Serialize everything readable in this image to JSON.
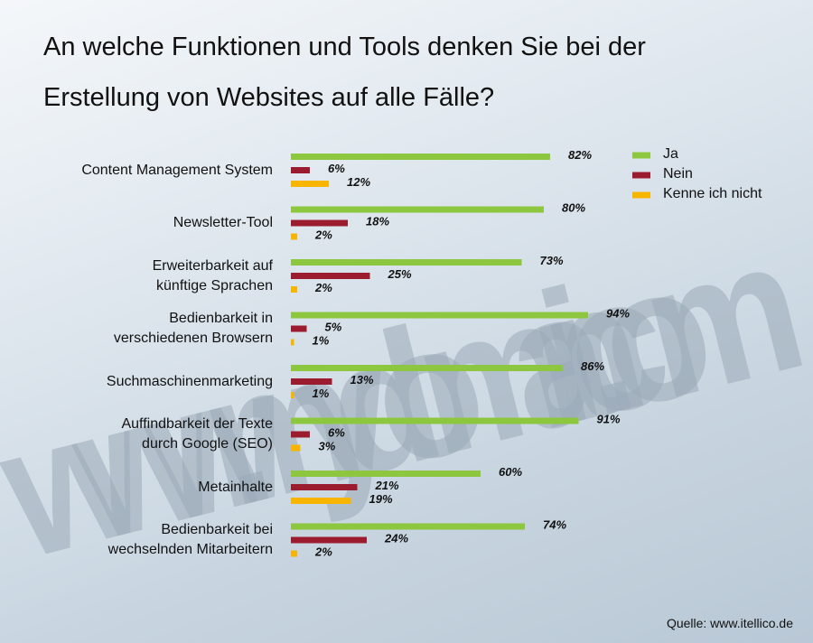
{
  "chart_data": {
    "type": "bar",
    "orientation": "horizontal",
    "title": "An welche Funktionen und Tools denken Sie bei der Erstellung von Websites auf alle Fälle?",
    "categories": [
      "Content Management System",
      "Newsletter-Tool",
      "Erweiterbarkeit auf\nkünftige Sprachen",
      "Bedienbarkeit in\nverschiedenen Browsern",
      "Suchmaschinenmarketing",
      "Auffindbarkeit der Texte\ndurch Google (SEO)",
      "Metainhalte",
      "Bedienbarkeit bei\nwechselnden Mitarbeitern"
    ],
    "series": [
      {
        "name": "Ja",
        "color": "#8dc63f",
        "values": [
          82,
          80,
          73,
          94,
          86,
          91,
          60,
          74
        ],
        "value_labels": [
          "82%",
          "80%",
          "73%",
          "94%",
          "86%",
          "91%",
          "60%",
          "74%"
        ]
      },
      {
        "name": "Nein",
        "color": "#9b1c2e",
        "values": [
          6,
          18,
          25,
          5,
          13,
          6,
          21,
          24
        ],
        "value_labels": [
          "6%",
          "18%",
          "25%",
          "5%",
          "13%",
          "6%",
          "21%",
          "24%"
        ]
      },
      {
        "name": "Kenne ich nicht",
        "color": "#f7b500",
        "values": [
          12,
          2,
          2,
          1,
          1,
          3,
          19,
          2
        ],
        "value_labels": [
          "12%",
          "2%",
          "2%",
          "1%",
          "1%",
          "3%",
          "19%",
          "2%"
        ]
      }
    ],
    "legend": "top-right",
    "watermark": "www.mydomain.com",
    "source": "Quelle: www.itellico.de"
  }
}
